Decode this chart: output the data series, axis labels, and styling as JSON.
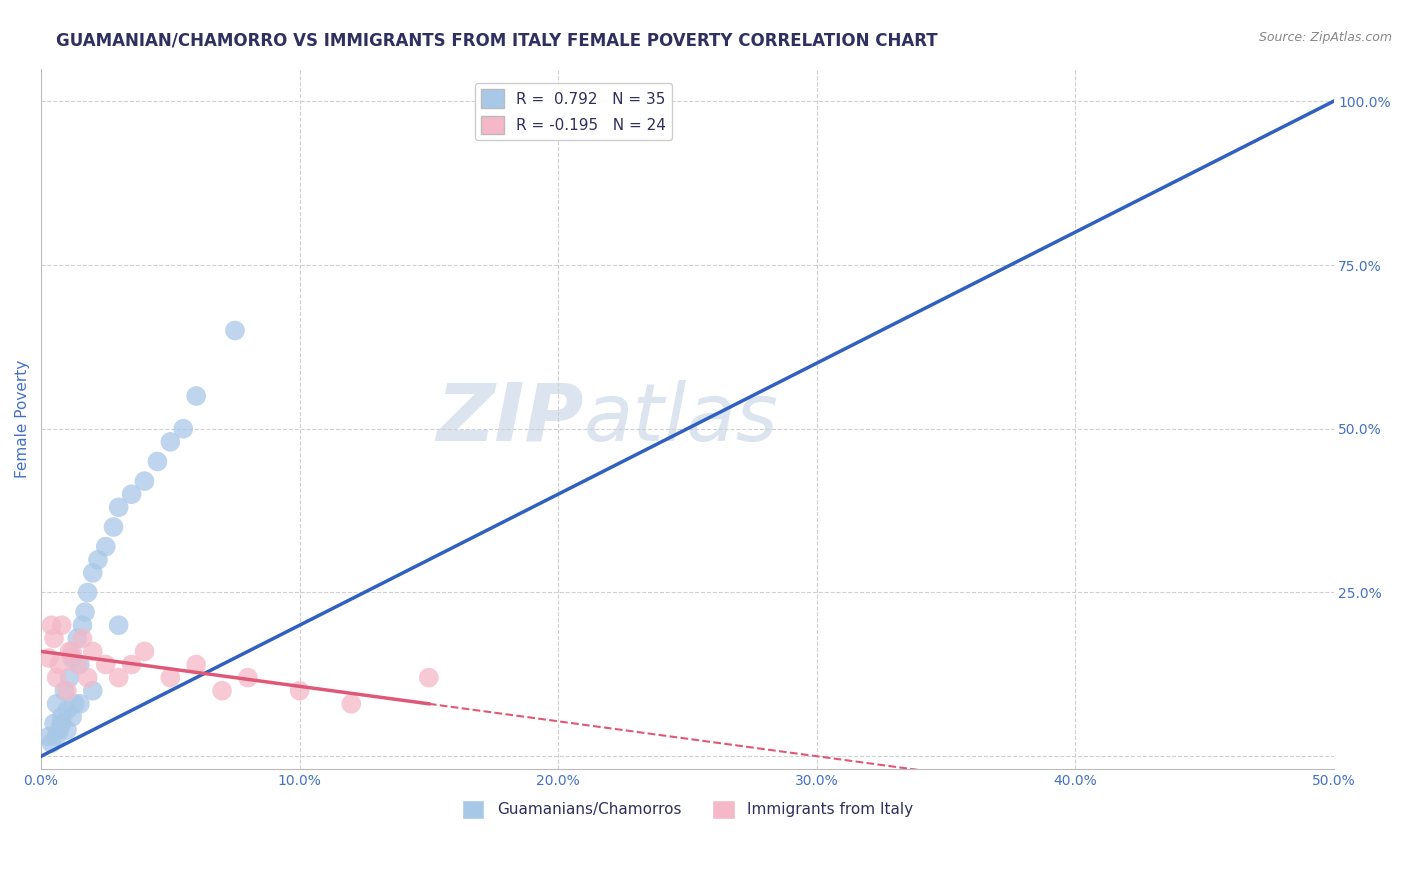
{
  "title": "GUAMANIAN/CHAMORRO VS IMMIGRANTS FROM ITALY FEMALE POVERTY CORRELATION CHART",
  "source": "Source: ZipAtlas.com",
  "ylabel": "Female Poverty",
  "watermark": "ZIPatlas",
  "R_blue": 0.792,
  "N_blue": 35,
  "R_pink": -0.195,
  "N_pink": 24,
  "blue_color": "#a8c8e8",
  "pink_color": "#f4b8c8",
  "blue_line_color": "#3060c0",
  "pink_line_color": "#e05878",
  "title_color": "#303060",
  "axis_label_color": "#4472c4",
  "tick_label_color": "#4472c4",
  "source_color": "#888888",
  "grid_color": "#d0d0d0",
  "watermark_color": "#dce4f0",
  "xlim": [
    0,
    50.0
  ],
  "ylim": [
    -2.0,
    105.0
  ],
  "xticks": [
    0.0,
    10.0,
    20.0,
    30.0,
    40.0,
    50.0
  ],
  "yticks": [
    0.0,
    25.0,
    50.0,
    75.0,
    100.0
  ],
  "xticklabels": [
    "0.0%",
    "10.0%",
    "20.0%",
    "30.0%",
    "40.0%",
    "50.0%"
  ],
  "yticklabels": [
    "",
    "25.0%",
    "50.0%",
    "75.0%",
    "100.0%"
  ],
  "blue_scatter_x": [
    0.3,
    0.5,
    0.6,
    0.7,
    0.8,
    0.9,
    1.0,
    1.1,
    1.2,
    1.3,
    1.4,
    1.5,
    1.6,
    1.7,
    1.8,
    2.0,
    2.2,
    2.5,
    2.8,
    3.0,
    3.5,
    4.0,
    4.5,
    5.0,
    5.5,
    6.0,
    0.4,
    0.6,
    0.8,
    1.0,
    1.2,
    1.5,
    2.0,
    3.0,
    7.5
  ],
  "blue_scatter_y": [
    3.0,
    5.0,
    8.0,
    4.0,
    6.0,
    10.0,
    7.0,
    12.0,
    15.0,
    8.0,
    18.0,
    14.0,
    20.0,
    22.0,
    25.0,
    28.0,
    30.0,
    32.0,
    35.0,
    38.0,
    40.0,
    42.0,
    45.0,
    48.0,
    50.0,
    55.0,
    2.0,
    3.0,
    5.0,
    4.0,
    6.0,
    8.0,
    10.0,
    20.0,
    65.0
  ],
  "pink_scatter_x": [
    0.3,
    0.5,
    0.6,
    0.8,
    1.0,
    1.2,
    1.4,
    1.6,
    1.8,
    2.0,
    2.5,
    3.0,
    3.5,
    4.0,
    5.0,
    6.0,
    7.0,
    8.0,
    10.0,
    12.0,
    0.4,
    0.7,
    1.1,
    15.0
  ],
  "pink_scatter_y": [
    15.0,
    18.0,
    12.0,
    20.0,
    10.0,
    16.0,
    14.0,
    18.0,
    12.0,
    16.0,
    14.0,
    12.0,
    14.0,
    16.0,
    12.0,
    14.0,
    10.0,
    12.0,
    10.0,
    8.0,
    20.0,
    14.0,
    16.0,
    12.0
  ],
  "pink_solid_end_x": 15.0,
  "blue_line_x0": 0.0,
  "blue_line_x1": 50.0,
  "blue_line_y0": 0.0,
  "blue_line_y1": 100.0,
  "pink_line_y0": 16.0,
  "pink_line_y1": 8.0
}
